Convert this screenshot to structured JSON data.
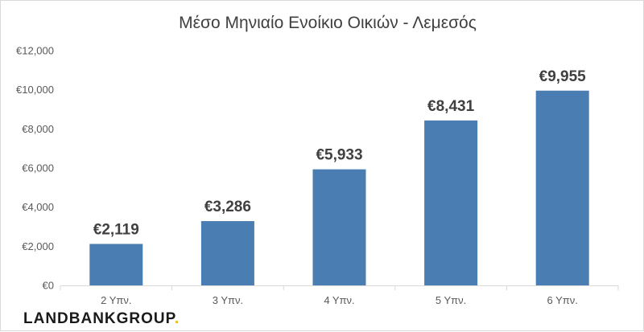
{
  "logo": {
    "part1": "LANDBANK",
    "part2": "GROUP",
    "dot": "."
  },
  "colors": {
    "bar": "#4a7eb3",
    "axis": "#d9d9d9",
    "text": "#404040",
    "tick": "#595959",
    "accent": "#f2b705"
  },
  "chart_data": {
    "type": "bar",
    "title": "Μέσο Μηνιαίο Ενοίκιο Οικιών - Λεμεσός",
    "xlabel": "",
    "ylabel": "",
    "categories": [
      "2 Υπν.",
      "3 Υπν.",
      "4 Υπν.",
      "5 Υπν.",
      "6 Υπν."
    ],
    "values": [
      2119,
      3286,
      5933,
      8431,
      9955
    ],
    "value_labels": [
      "€2,119",
      "€3,286",
      "€5,933",
      "€8,431",
      "€9,955"
    ],
    "ylim": [
      0,
      12000
    ],
    "yticks": [
      0,
      2000,
      4000,
      6000,
      8000,
      10000,
      12000
    ],
    "ytick_labels": [
      "€0",
      "€2,000",
      "€4,000",
      "€6,000",
      "€8,000",
      "€10,000",
      "€12,000"
    ],
    "grid": false,
    "legend": "none"
  }
}
